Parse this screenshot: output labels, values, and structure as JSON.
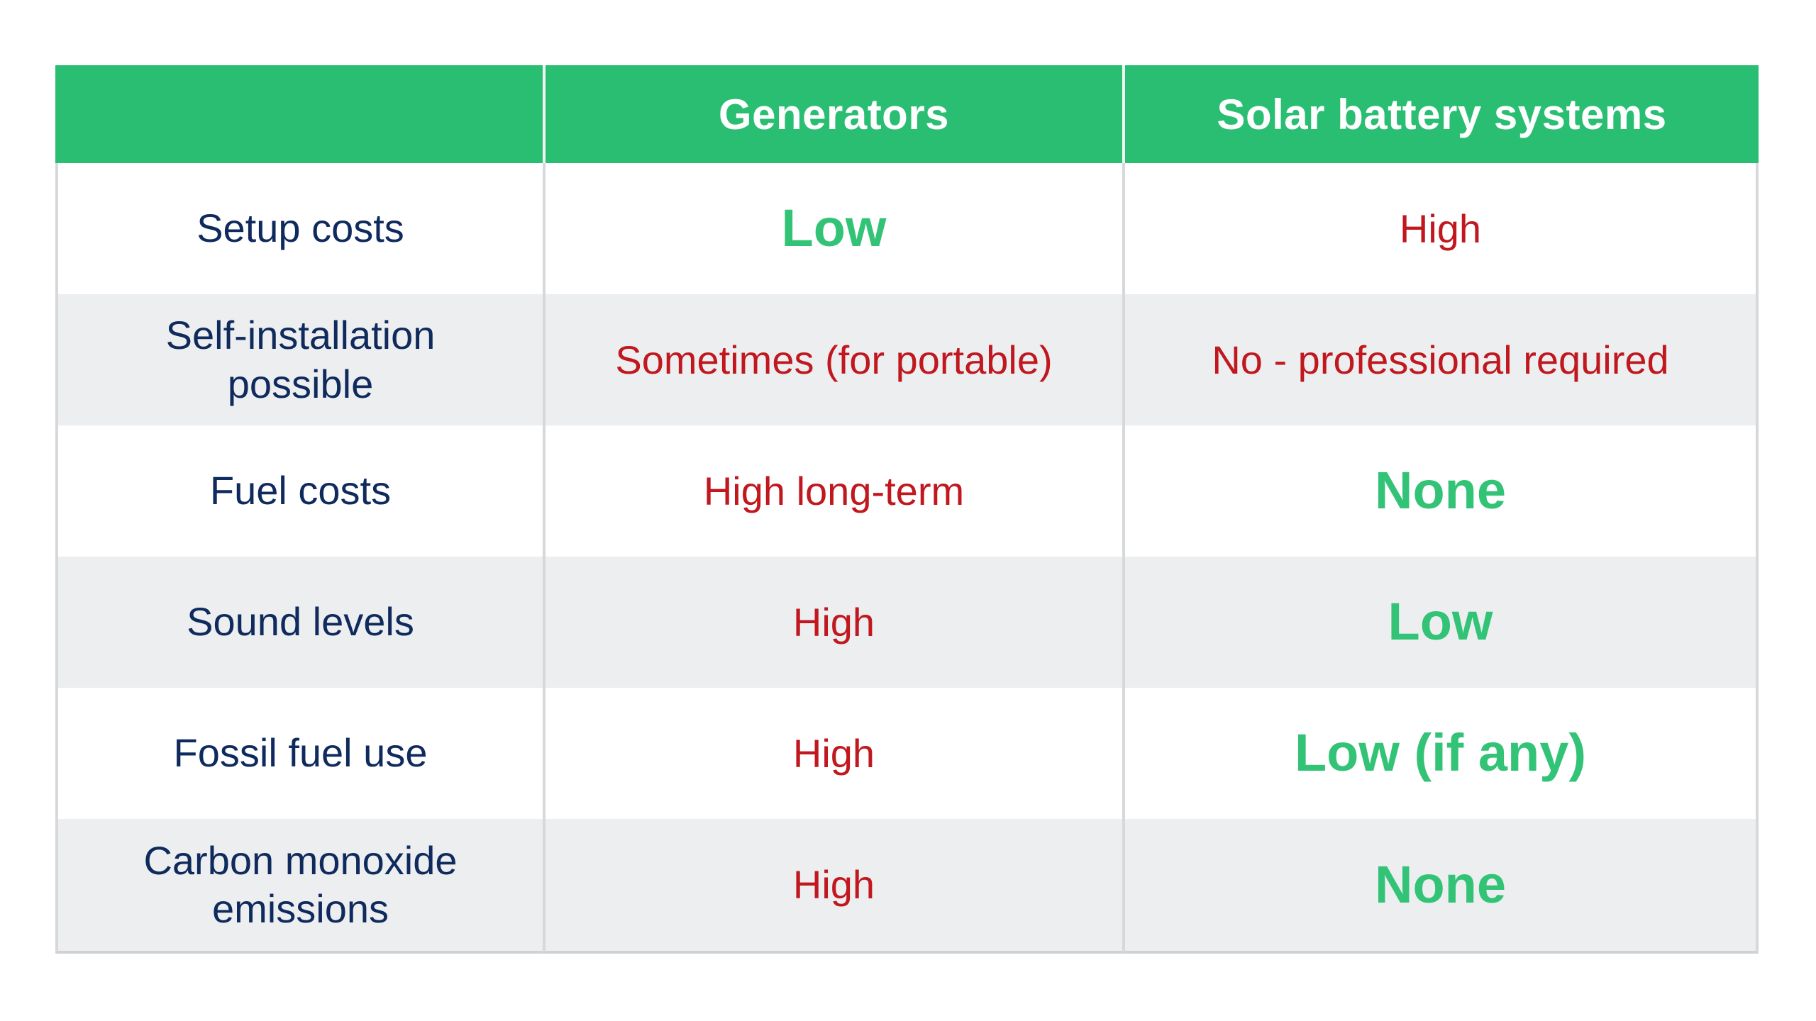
{
  "chart_data": {
    "type": "table",
    "columns": [
      "",
      "Generators",
      "Solar battery systems"
    ],
    "rows": [
      [
        "Setup costs",
        "Low",
        "High"
      ],
      [
        "Self-installation possible",
        "Sometimes (for portable)",
        "No - professional required"
      ],
      [
        "Fuel costs",
        "High long-term",
        "None"
      ],
      [
        "Sound levels",
        "High",
        "Low"
      ],
      [
        "Fossil fuel use",
        "High",
        "Low (if any)"
      ],
      [
        "Carbon monoxide emissions",
        "High",
        "None"
      ]
    ],
    "cell_tones": [
      [
        null,
        "good",
        "bad"
      ],
      [
        null,
        "bad",
        "bad"
      ],
      [
        null,
        "bad",
        "good"
      ],
      [
        null,
        "bad",
        "good"
      ],
      [
        null,
        "bad",
        "good"
      ],
      [
        null,
        "bad",
        "good"
      ]
    ],
    "tone_meaning": {
      "good": "advantage (green, bold)",
      "bad": "disadvantage (red)"
    },
    "title": "",
    "legend_position": "none",
    "grid": "column dividers and alternating row shading"
  },
  "colors": {
    "page-bg": "#ffffff",
    "header-bg": "#2abe73",
    "header-text": "#ffffff",
    "header-divider": "#f3f6f4",
    "label-text": "#0f2a5c",
    "bad-text": "#c0181e",
    "good-text": "#33c377",
    "row-bg": "#ffffff",
    "row-alt-bg": "#edeef0",
    "divider": "#d6d8da",
    "outer-border": "#cfd2d5"
  }
}
